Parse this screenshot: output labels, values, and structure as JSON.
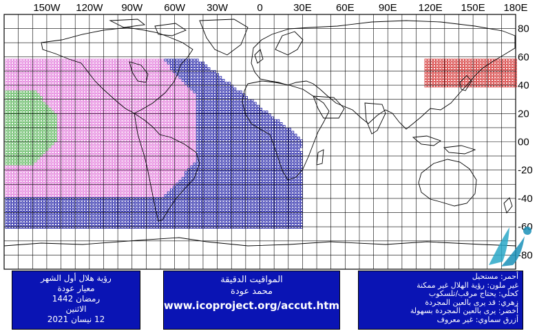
{
  "map": {
    "top_labels": [
      "150W",
      "120W",
      "90W",
      "60W",
      "30W",
      "0",
      "30E",
      "60E",
      "90E",
      "120E",
      "150E",
      "180E"
    ],
    "right_labels": [
      "80",
      "60",
      "40",
      "20",
      "00",
      "-20",
      "-40",
      "-60",
      "-80"
    ],
    "colors": {
      "pink": "#e070d8",
      "green": "#4fb04f",
      "navy": "#1010a0",
      "red": "#d02020",
      "grid": "#000000"
    },
    "regions": [
      {
        "name": "visible-with-telescope",
        "color": "pink",
        "lon": [
          -180,
          -45
        ],
        "lat": [
          -38,
          60
        ]
      },
      {
        "name": "visible-naked-eye",
        "color": "green",
        "lon": [
          -180,
          -143
        ],
        "lat": [
          -15,
          38
        ]
      },
      {
        "name": "visible-optical-aid",
        "color": "navy",
        "lon": [
          -180,
          30
        ],
        "lat": [
          -60,
          60
        ]
      },
      {
        "name": "impossible",
        "color": "red",
        "lon": [
          115,
          180
        ],
        "lat": [
          40,
          60
        ]
      }
    ]
  },
  "panel_left": {
    "line1": "رؤية هلال أول الشهر",
    "line2": "معيار عودة",
    "line3": "رمضان 1442",
    "line4": "الاثنين",
    "line5": "12 نيسان 2021"
  },
  "panel_mid": {
    "line1": "المواقيت الدقيقة",
    "line2": "محمد عودة",
    "url": "www.icoproject.org/accut.html"
  },
  "legend": {
    "line1": "أحمر: مستحيل",
    "line2": "غير ملون: رؤية الهلال غير ممكنة",
    "line3": "كحلي: يحتاج مرقب/تلسكوب",
    "line4": "زهري: قد يرى بالعين المجردة",
    "line5": "أخضر: يرى بالعين المجردة بسهولة",
    "line6": "أزرق سماوي: غير معروف"
  }
}
